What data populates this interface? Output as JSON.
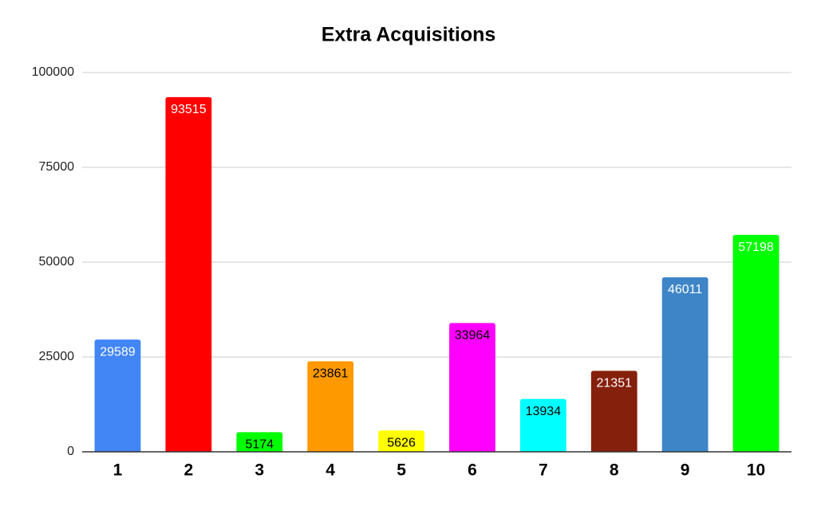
{
  "chart_data": {
    "type": "bar",
    "title": "Extra Acquisitions",
    "categories": [
      "1",
      "2",
      "3",
      "4",
      "5",
      "6",
      "7",
      "8",
      "9",
      "10"
    ],
    "values": [
      29589,
      93515,
      5174,
      23861,
      5626,
      33964,
      13934,
      21351,
      46011,
      57198
    ],
    "colors": [
      "#4285f4",
      "#ff0000",
      "#00ff00",
      "#ff9900",
      "#ffff00",
      "#ff00ff",
      "#00ffff",
      "#85200c",
      "#3d85c6",
      "#00ff00"
    ],
    "label_colors": [
      "#ffffff",
      "#ffffff",
      "#000000",
      "#000000",
      "#000000",
      "#000000",
      "#000000",
      "#ffffff",
      "#ffffff",
      "#ffffff"
    ],
    "ylim": [
      0,
      100000
    ],
    "yticks": [
      0,
      25000,
      50000,
      75000,
      100000
    ],
    "grid": true
  }
}
